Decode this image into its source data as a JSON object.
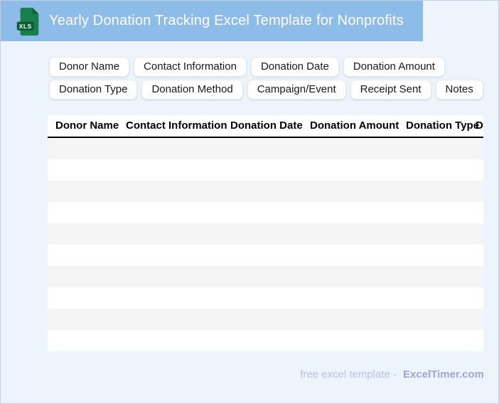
{
  "header": {
    "title": "Yearly Donation Tracking Excel Template for Nonprofits",
    "file_badge": "XLS"
  },
  "chip_rows": {
    "row1": [
      "Donor Name",
      "Contact Information",
      "Donation Date",
      "Donation Amount"
    ],
    "row2": [
      "Donation Type",
      "Donation Method",
      "Campaign/Event",
      "Receipt Sent",
      "Notes"
    ]
  },
  "table": {
    "columns": [
      "Donor Name",
      "Contact Information",
      "Donation Date",
      "Donation Amount",
      "Donation Type",
      "Donation Method"
    ],
    "empty_row_count": 10
  },
  "footer": {
    "caption": "free excel template -",
    "brand": "ExcelTimer.com"
  },
  "colors": {
    "banner_blue": "#8ebce9",
    "page_background": "#eef4fc",
    "page_border": "#c3cfdf",
    "icon_green": "#17804d",
    "icon_fold_green": "#0f5e33",
    "icon_badge_green": "#0a5d31",
    "row_stripe_gray": "#f5f5f6",
    "header_border_black": "#000000",
    "footer_text": "#b6c2ec",
    "footer_brand": "#9aa8d4"
  }
}
